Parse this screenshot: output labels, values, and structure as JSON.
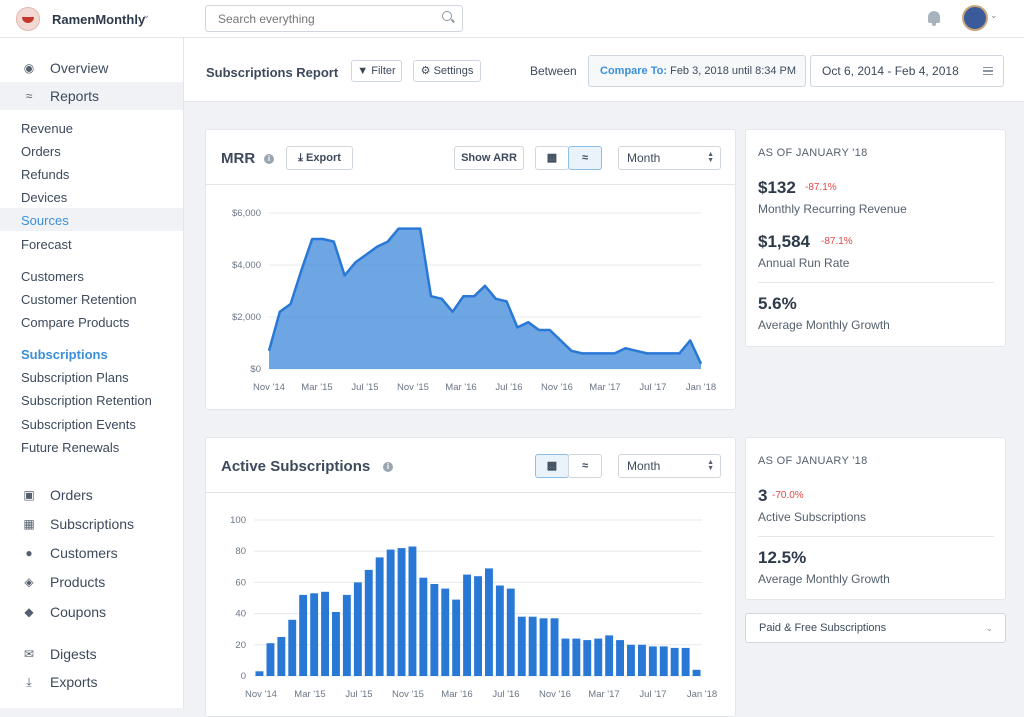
{
  "topbar": {
    "brand": "RamenMonthly",
    "search_placeholder": "Search everything"
  },
  "sidebar": {
    "main_top": [
      {
        "label": "Overview",
        "icon": "dashboard-icon"
      },
      {
        "label": "Reports",
        "icon": "line-chart-icon"
      }
    ],
    "reports": [
      {
        "label": "Revenue"
      },
      {
        "label": "Orders"
      },
      {
        "label": "Refunds"
      },
      {
        "label": "Devices"
      },
      {
        "label": "Sources"
      },
      {
        "label": "Forecast"
      }
    ],
    "customers": [
      {
        "label": "Customers"
      },
      {
        "label": "Customer Retention"
      },
      {
        "label": "Compare Products"
      }
    ],
    "subscriptions": [
      {
        "label": "Subscriptions"
      },
      {
        "label": "Subscription Plans"
      },
      {
        "label": "Subscription Retention"
      },
      {
        "label": "Subscription Events"
      },
      {
        "label": "Future Renewals"
      }
    ],
    "main_bottom": [
      {
        "label": "Orders",
        "icon": "cart-icon"
      },
      {
        "label": "Subscriptions",
        "icon": "calendar-icon"
      },
      {
        "label": "Customers",
        "icon": "users-icon"
      },
      {
        "label": "Products",
        "icon": "cube-icon"
      },
      {
        "label": "Coupons",
        "icon": "tag-icon"
      },
      {
        "label": "Digests",
        "icon": "envelope-icon"
      },
      {
        "label": "Exports",
        "icon": "download-icon"
      }
    ]
  },
  "header": {
    "title": "Subscriptions Report",
    "filter": "Filter",
    "settings": "Settings",
    "between": "Between",
    "compare_label": "Compare To:",
    "compare_value": "Feb 3, 2018 until 8:34 PM",
    "range": "Oct 6, 2014 - Feb 4, 2018"
  },
  "mrr_card": {
    "title": "MRR",
    "export": "Export",
    "show_arr": "Show ARR",
    "period": "Month"
  },
  "mrr_stats": {
    "as_of": "AS OF JANUARY '18",
    "mrr_value": "$132",
    "mrr_change": "-87.1%",
    "mrr_label": "Monthly Recurring Revenue",
    "arr_value": "$1,584",
    "arr_change": "-87.1%",
    "arr_label": "Annual Run Rate",
    "growth_value": "5.6%",
    "growth_label": "Average Monthly Growth"
  },
  "subs_card": {
    "title": "Active Subscriptions",
    "period": "Month"
  },
  "subs_stats": {
    "as_of": "AS OF JANUARY '18",
    "count_value": "3",
    "count_change": "-70.0%",
    "count_label": "Active Subscriptions",
    "growth_value": "12.5%",
    "growth_label": "Average Monthly Growth",
    "paid_free": "Paid & Free Subscriptions"
  },
  "chart_data": [
    {
      "type": "area",
      "name": "mrr",
      "ylim": [
        0,
        6000
      ],
      "yticks": [
        "$0",
        "$2,000",
        "$4,000",
        "$6,000"
      ],
      "xticks": [
        "Nov '14",
        "Mar '15",
        "Jul '15",
        "Nov '15",
        "Mar '16",
        "Jul '16",
        "Nov '16",
        "Mar '17",
        "Jul '17",
        "Jan '18"
      ],
      "values": [
        700,
        2200,
        2500,
        3800,
        5000,
        5000,
        4900,
        3600,
        4100,
        4400,
        4700,
        4900,
        5400,
        5400,
        5400,
        2800,
        2700,
        2200,
        2800,
        2800,
        3200,
        2700,
        2600,
        1600,
        1800,
        1500,
        1500,
        1100,
        700,
        600,
        600,
        600,
        600,
        800,
        700,
        600,
        600,
        600,
        600,
        1100,
        200
      ]
    },
    {
      "type": "bar",
      "name": "active-subscriptions",
      "ylim": [
        0,
        100
      ],
      "yticks": [
        "0",
        "20",
        "40",
        "60",
        "80",
        "100"
      ],
      "xticks": [
        "Nov '14",
        "Mar '15",
        "Jul '15",
        "Nov '15",
        "Mar '16",
        "Jul '16",
        "Nov '16",
        "Mar '17",
        "Jul '17",
        "Jan '18"
      ],
      "values": [
        3,
        21,
        25,
        36,
        52,
        53,
        54,
        41,
        52,
        60,
        68,
        76,
        81,
        82,
        83,
        63,
        59,
        56,
        49,
        65,
        64,
        69,
        58,
        56,
        38,
        38,
        37,
        37,
        24,
        24,
        23,
        24,
        26,
        23,
        20,
        20,
        19,
        19,
        18,
        18,
        4
      ]
    }
  ]
}
